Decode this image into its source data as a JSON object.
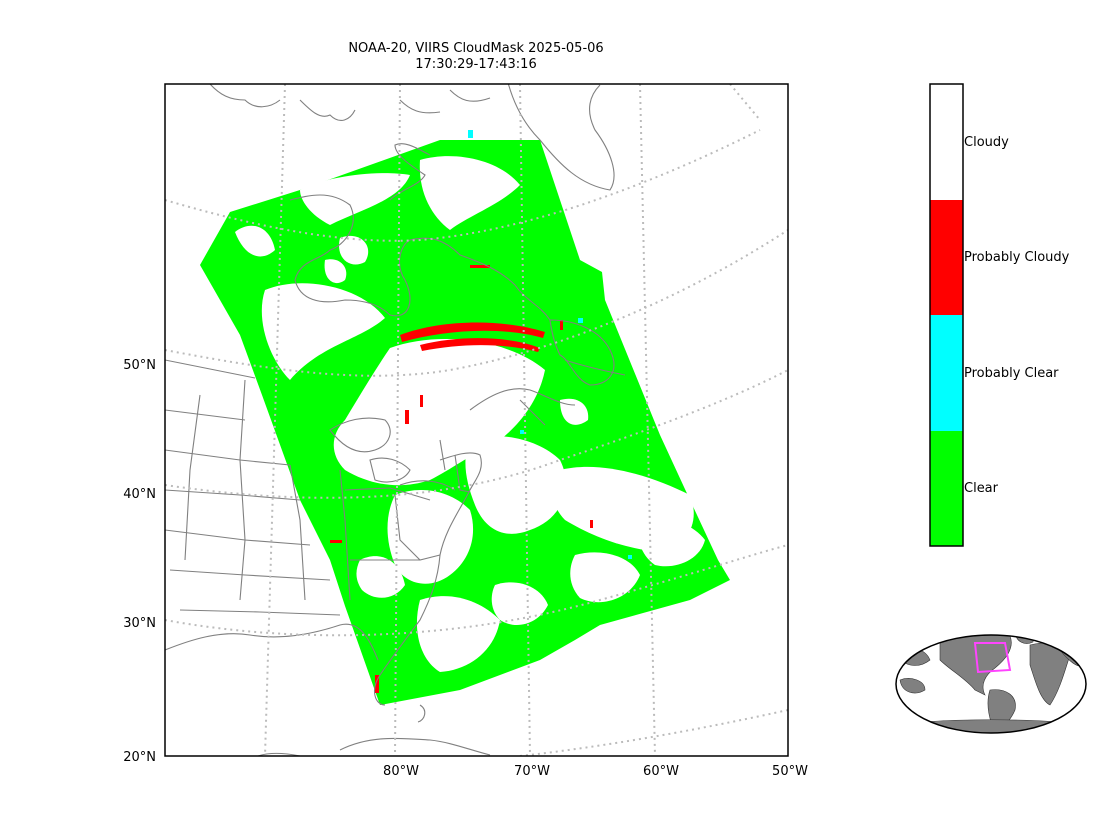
{
  "title": {
    "line1": "NOAA-20, VIIRS CloudMask 2025-05-06",
    "line2": "17:30:29-17:43:16"
  },
  "map": {
    "lat_labels": [
      "50°N",
      "40°N",
      "30°N",
      "20°N"
    ],
    "lon_labels": [
      "80°W",
      "70°W",
      "60°W",
      "50°W"
    ],
    "extent": {
      "lon_min": -92,
      "lon_max": -50,
      "lat_min": 20,
      "lat_max": 62
    }
  },
  "colorbar": {
    "classes": [
      {
        "label": "Cloudy",
        "color": "#ffffff"
      },
      {
        "label": "Probably Cloudy",
        "color": "#ff0000"
      },
      {
        "label": "Probably Clear",
        "color": "#00ffff"
      },
      {
        "label": "Clear",
        "color": "#00ff00"
      }
    ]
  },
  "inset": {
    "land_color": "#808080",
    "box_color": "#ff44ff"
  }
}
